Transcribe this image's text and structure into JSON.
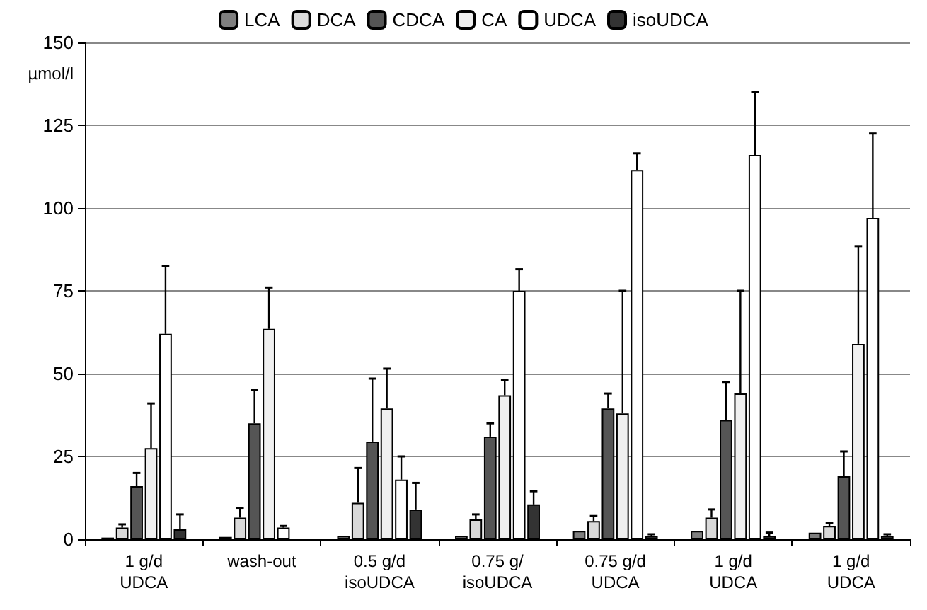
{
  "chart_data": {
    "type": "bar",
    "ylabel": "µmol/l",
    "categories": [
      "1 g/d\nUDCA",
      "wash-out",
      "0.5 g/d\nisoUDCA",
      "0.75 g/\nisoUDCA",
      "0.75 g/d\nUDCA",
      "1 g/d\nUDCA",
      "1 g/d\nUDCA"
    ],
    "series": [
      {
        "name": "LCA",
        "color": "#7f7f7f",
        "values": [
          0.5,
          0.7,
          1,
          1,
          2.5,
          2.5,
          2
        ]
      },
      {
        "name": "DCA",
        "color": "#d9d9d9",
        "values": [
          3.5,
          6.5,
          11,
          6,
          5.5,
          6.5,
          4
        ],
        "errors": [
          [
            3.5,
            4.5
          ],
          [
            6.5,
            9.5
          ],
          [
            11,
            21.5
          ],
          [
            6,
            7.5
          ],
          [
            5.5,
            7
          ],
          [
            6.5,
            9
          ],
          [
            4,
            5
          ]
        ]
      },
      {
        "name": "CDCA",
        "color": "#555555",
        "values": [
          16,
          35,
          29.5,
          31,
          39.5,
          36,
          19
        ],
        "errors": [
          [
            16,
            20
          ],
          [
            35,
            45
          ],
          [
            29.5,
            48.5
          ],
          [
            31,
            35
          ],
          [
            39.5,
            44
          ],
          [
            36,
            47.5
          ],
          [
            19,
            26.5
          ]
        ]
      },
      {
        "name": "CA",
        "color": "#f0f0f0",
        "values": [
          27.5,
          63.5,
          39.5,
          43.5,
          38,
          44,
          59
        ],
        "errors": [
          [
            27.5,
            41
          ],
          [
            63.5,
            76
          ],
          [
            39.5,
            51.5
          ],
          [
            43.5,
            48
          ],
          [
            38,
            75
          ],
          [
            44,
            75
          ],
          [
            59,
            88.5
          ]
        ]
      },
      {
        "name": "UDCA",
        "color": "#ffffff",
        "values": [
          62,
          3.5,
          18,
          75,
          111.5,
          116,
          97
        ],
        "errors": [
          [
            62,
            82.5
          ],
          [
            3.5,
            4
          ],
          [
            18,
            25
          ],
          [
            75,
            81.5
          ],
          [
            111.5,
            116.5
          ],
          [
            116,
            135
          ],
          [
            97,
            122.5
          ]
        ]
      },
      {
        "name": "isoUDCA",
        "color": "#333333",
        "values": [
          3,
          null,
          9,
          10.5,
          1,
          1,
          1
        ],
        "errors": [
          [
            3,
            7.5
          ],
          null,
          [
            9,
            17
          ],
          [
            10.5,
            14.5
          ],
          [
            1,
            1.5
          ],
          [
            1,
            2
          ],
          [
            1,
            1.5
          ]
        ]
      }
    ],
    "ylim": [
      0,
      150
    ],
    "yticks": [
      0,
      25,
      50,
      75,
      100,
      125,
      150
    ],
    "grid": "y",
    "legend": "top"
  }
}
